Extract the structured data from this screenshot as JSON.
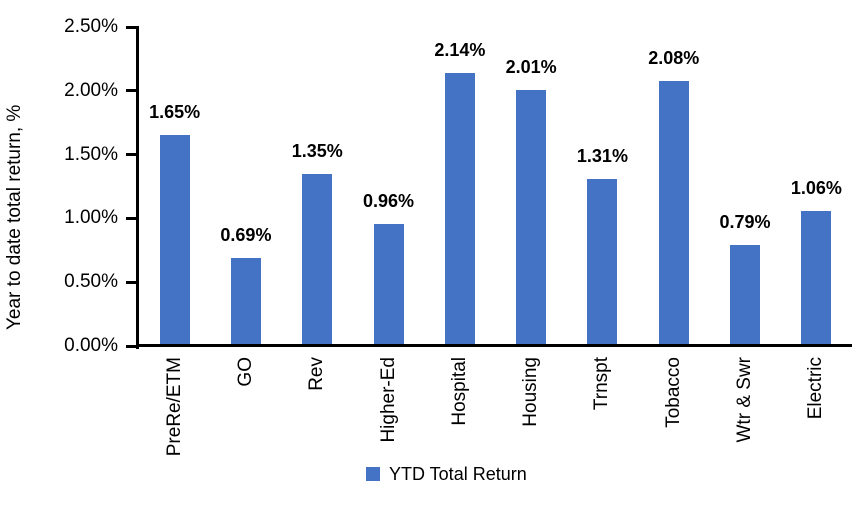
{
  "chart_data": {
    "type": "bar",
    "categories": [
      "PreRe/ETM",
      "GO",
      "Rev",
      "Higher-Ed",
      "Hospital",
      "Housing",
      "Trnspt",
      "Tobacco",
      "Wtr & Swr",
      "Electric"
    ],
    "series": [
      {
        "name": "YTD Total Return",
        "values": [
          1.65,
          0.69,
          1.35,
          0.96,
          2.14,
          2.01,
          1.31,
          2.08,
          0.79,
          1.06
        ]
      }
    ],
    "value_labels": [
      "1.65%",
      "0.69%",
      "1.35%",
      "0.96%",
      "2.14%",
      "2.01%",
      "1.31%",
      "2.08%",
      "0.79%",
      "1.06%"
    ],
    "ylabel": "Year to date total return, %",
    "xlabel": "",
    "y_ticks": [
      "0.00%",
      "0.50%",
      "1.00%",
      "1.50%",
      "2.00%",
      "2.50%"
    ],
    "ylim": [
      0,
      2.5
    ],
    "grid": false,
    "legend": {
      "position": "bottom-center",
      "label": "YTD Total Return"
    },
    "bar_color": "#4472C4",
    "axis_color": "#000000",
    "text_color": "#000000"
  }
}
